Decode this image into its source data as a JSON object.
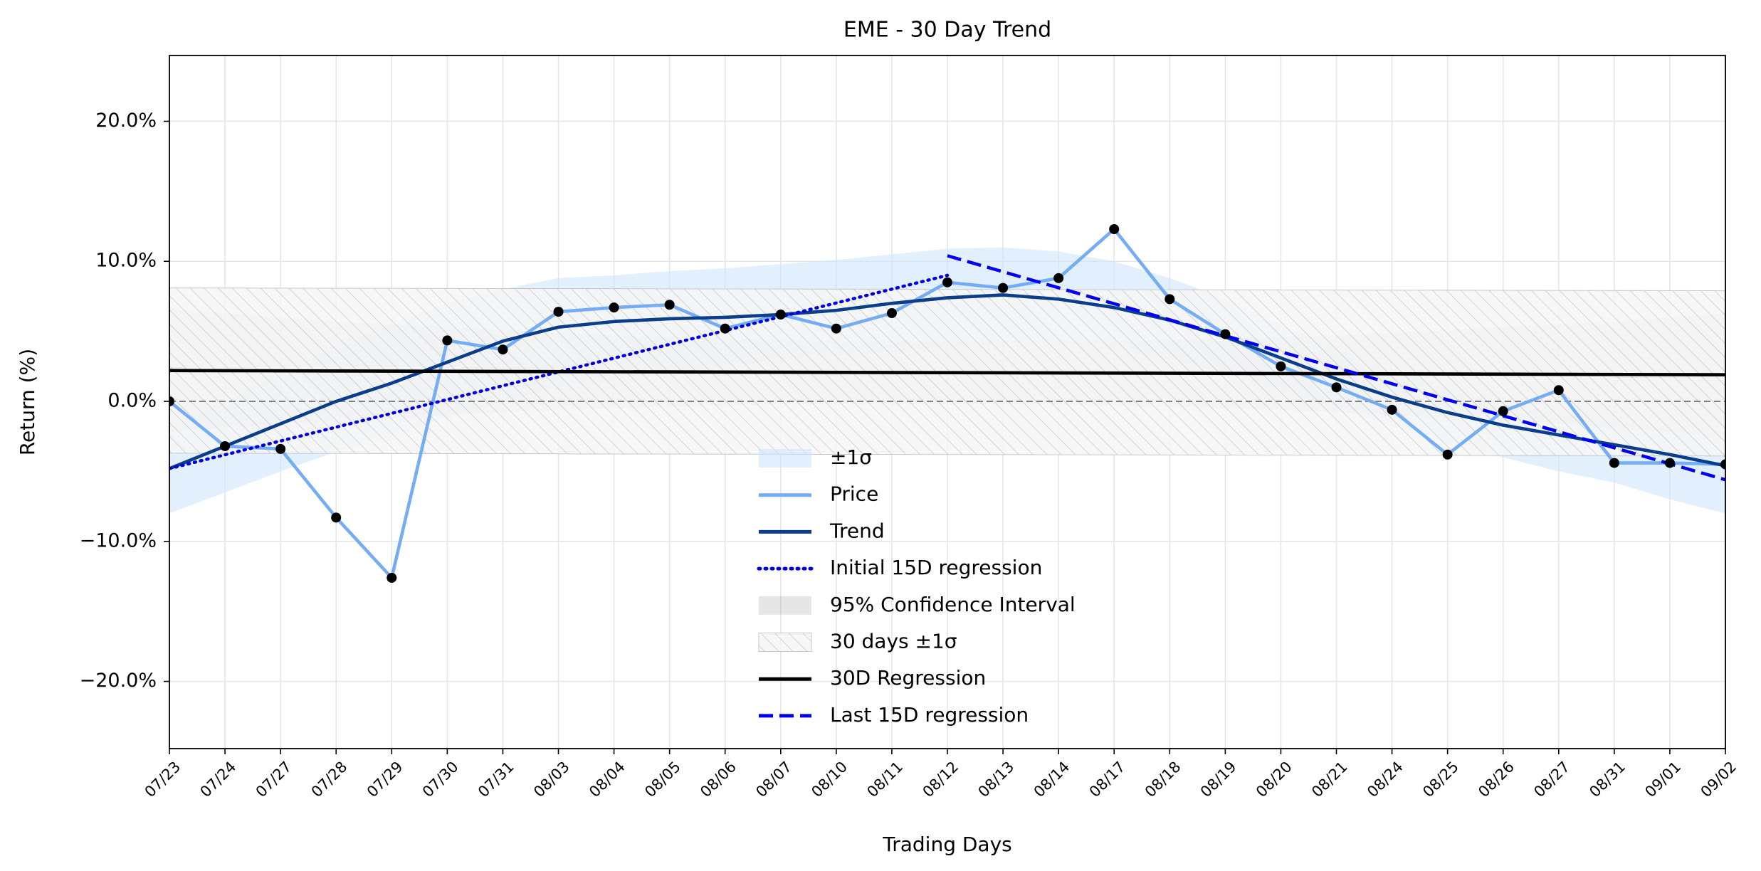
{
  "chart_data": {
    "type": "line",
    "title": "EME - 30 Day Trend",
    "x_label": "Trading Days",
    "y_label": "Return (%)",
    "categories": [
      "07/23",
      "07/24",
      "07/27",
      "07/28",
      "07/29",
      "07/30",
      "07/31",
      "08/03",
      "08/04",
      "08/05",
      "08/06",
      "08/07",
      "08/10",
      "08/11",
      "08/12",
      "08/13",
      "08/14",
      "08/17",
      "08/18",
      "08/19",
      "08/20",
      "08/21",
      "08/24",
      "08/25",
      "08/26",
      "08/27",
      "08/31",
      "09/01",
      "09/02"
    ],
    "ylim": [
      -24.8,
      24.7
    ],
    "yticks": [
      {
        "value": -20,
        "label": "−20.0%"
      },
      {
        "value": -10,
        "label": "−10.0%"
      },
      {
        "value": 0,
        "label": "0.0%"
      },
      {
        "value": 10,
        "label": "10.0%"
      },
      {
        "value": 20,
        "label": "20.0%"
      }
    ],
    "grid": true,
    "hline": 0,
    "legend": "lower center",
    "series": [
      {
        "name": "±1σ",
        "kind": "band",
        "color": "#cfe4fc",
        "alpha": 0.6,
        "upper": [
          -2.0,
          0,
          2,
          4,
          5.5,
          7,
          8,
          8.8,
          9,
          9.3,
          9.5,
          9.8,
          10.1,
          10.5,
          10.9,
          11.0,
          10.7,
          10,
          8.8,
          7.3,
          5.5,
          3.8,
          2.3,
          1,
          0,
          -0.8,
          -1.5,
          -2,
          -2.5
        ],
        "lower": [
          -8,
          -6.5,
          -5,
          -3.6,
          -2.5,
          -1.2,
          0,
          0.8,
          1.5,
          2,
          2.5,
          3,
          3.2,
          3.5,
          3.9,
          4.2,
          4.2,
          3.8,
          3,
          2,
          0.8,
          -0.5,
          -1.8,
          -3,
          -4,
          -5,
          -5.8,
          -7,
          -8
        ]
      },
      {
        "name": "Price",
        "kind": "line",
        "color": "#75adf5",
        "marker_color": "#000000",
        "values": [
          0,
          -3.2,
          -3.4,
          -8.3,
          -12.6,
          4.35,
          3.7,
          6.4,
          6.7,
          6.9,
          5.2,
          6.2,
          5.2,
          6.3,
          8.5,
          8.1,
          8.8,
          12.3,
          7.3,
          4.8,
          2.5,
          1.0,
          -0.6,
          -3.8,
          -0.7,
          0.8,
          -4.4,
          -4.4,
          -4.5
        ]
      },
      {
        "name": "Trend",
        "kind": "line",
        "color": "#0a3d8a",
        "values": [
          -4.8,
          -3.2,
          -1.6,
          0,
          1.3,
          2.8,
          4.3,
          5.3,
          5.7,
          5.9,
          6.0,
          6.2,
          6.5,
          7.0,
          7.4,
          7.6,
          7.3,
          6.7,
          5.8,
          4.6,
          3.1,
          1.6,
          0.3,
          -0.8,
          -1.7,
          -2.4,
          -3.1,
          -3.8,
          -4.6
        ]
      },
      {
        "name": "Initial 15D regression",
        "kind": "line",
        "dash": "dotted",
        "color": "#0000dd",
        "x": [
          "07/23",
          "08/12"
        ],
        "values": [
          -4.8,
          9.0
        ]
      },
      {
        "name": "95% Confidence Interval",
        "kind": "band",
        "color": "#8c8c8c",
        "alpha": 0.22,
        "upper": [
          6.6,
          6.3,
          6.0,
          5.7,
          5.5,
          5.3,
          5.1,
          4.9,
          4.7,
          4.6,
          4.5,
          4.4,
          4.3,
          4.3,
          4.3,
          4.3,
          4.3,
          4.3,
          4.4,
          4.5,
          4.6,
          4.7,
          4.9,
          5.1,
          5.3,
          5.5,
          5.7,
          6.0,
          6.3
        ],
        "lower": [
          -2.2,
          -1.9,
          -1.6,
          -1.4,
          -1.2,
          -1.0,
          -0.8,
          -0.6,
          -0.5,
          -0.4,
          -0.3,
          -0.2,
          -0.2,
          -0.2,
          -0.2,
          -0.2,
          -0.2,
          -0.3,
          -0.4,
          -0.5,
          -0.6,
          -0.8,
          -1.0,
          -1.2,
          -1.4,
          -1.6,
          -1.9,
          -2.2,
          -2.5
        ]
      },
      {
        "name": "30 days ±1σ",
        "kind": "band",
        "hatch": true,
        "color": "#c8c8c8",
        "alpha": 0.9,
        "x": [
          "07/23",
          "09/02"
        ],
        "upper": [
          8.1,
          7.9
        ],
        "lower": [
          -3.7,
          -3.9
        ]
      },
      {
        "name": "30D Regression",
        "kind": "line",
        "color": "#000000",
        "x": [
          "07/23",
          "09/02"
        ],
        "values": [
          2.2,
          1.9
        ]
      },
      {
        "name": "Last 15D regression",
        "kind": "line",
        "dash": "dashed",
        "color": "#0000f0",
        "x": [
          "08/12",
          "09/02"
        ],
        "values": [
          10.4,
          -5.6
        ]
      }
    ]
  }
}
